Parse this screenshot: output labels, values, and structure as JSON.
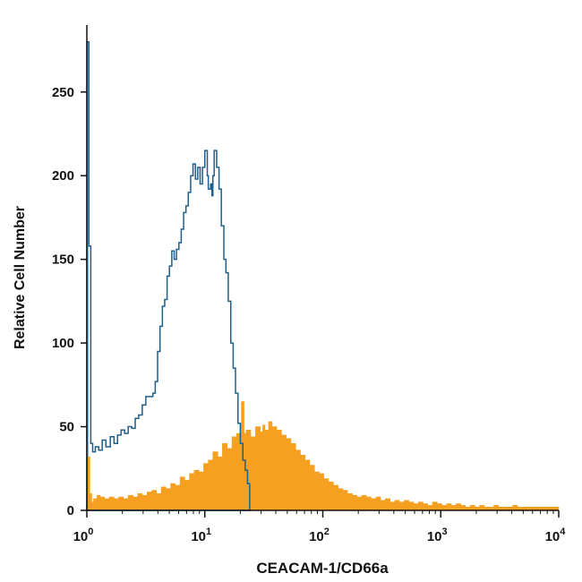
{
  "chart_data": {
    "type": "area",
    "xlabel": "CEACAM-1/CD66a",
    "ylabel": "Relative Cell Number",
    "x_scale": "log",
    "xlim": [
      1,
      10000
    ],
    "ylim": [
      0,
      290
    ],
    "y_ticks": [
      0,
      50,
      100,
      150,
      200,
      250
    ],
    "x_ticks": [
      {
        "base": "10",
        "exp": "0",
        "value": 1
      },
      {
        "base": "10",
        "exp": "1",
        "value": 10
      },
      {
        "base": "10",
        "exp": "2",
        "value": 100
      },
      {
        "base": "10",
        "exp": "3",
        "value": 1000
      },
      {
        "base": "10",
        "exp": "4",
        "value": 10000
      }
    ],
    "grid": false,
    "legend": "none",
    "colors": {
      "outline_series": "#1f5f8b",
      "outline_fill": "#8fb6d6",
      "filled_series": "#f5a020",
      "axis": "#111111"
    },
    "series": [
      {
        "style": "outline",
        "points": [
          [
            1.0,
            280
          ],
          [
            1.04,
            158
          ],
          [
            1.08,
            40
          ],
          [
            1.12,
            35
          ],
          [
            1.18,
            38
          ],
          [
            1.26,
            36
          ],
          [
            1.35,
            42
          ],
          [
            1.45,
            38
          ],
          [
            1.58,
            44
          ],
          [
            1.7,
            40
          ],
          [
            1.82,
            45
          ],
          [
            1.95,
            48
          ],
          [
            2.09,
            46
          ],
          [
            2.24,
            50
          ],
          [
            2.4,
            49
          ],
          [
            2.57,
            55
          ],
          [
            2.75,
            57
          ],
          [
            2.95,
            63
          ],
          [
            3.16,
            68
          ],
          [
            3.39,
            68
          ],
          [
            3.63,
            70
          ],
          [
            3.8,
            77
          ],
          [
            3.98,
            95
          ],
          [
            4.17,
            110
          ],
          [
            4.37,
            122
          ],
          [
            4.57,
            126
          ],
          [
            4.79,
            140
          ],
          [
            5.01,
            146
          ],
          [
            5.25,
            155
          ],
          [
            5.5,
            150
          ],
          [
            5.75,
            156
          ],
          [
            6.03,
            160
          ],
          [
            6.31,
            168
          ],
          [
            6.61,
            178
          ],
          [
            6.92,
            182
          ],
          [
            7.24,
            190
          ],
          [
            7.59,
            200
          ],
          [
            7.94,
            207
          ],
          [
            8.32,
            198
          ],
          [
            8.71,
            205
          ],
          [
            9.12,
            195
          ],
          [
            9.33,
            195
          ],
          [
            9.55,
            205
          ],
          [
            10.0,
            215
          ],
          [
            10.5,
            200
          ],
          [
            10.7,
            192
          ],
          [
            11.2,
            195
          ],
          [
            11.5,
            188
          ],
          [
            11.7,
            200
          ],
          [
            12.0,
            215
          ],
          [
            12.6,
            205
          ],
          [
            13.2,
            192
          ],
          [
            13.8,
            170
          ],
          [
            14.5,
            150
          ],
          [
            15.1,
            142
          ],
          [
            15.8,
            125
          ],
          [
            16.6,
            100
          ],
          [
            17.4,
            85
          ],
          [
            18.2,
            70
          ],
          [
            19.1,
            52
          ],
          [
            20.0,
            40
          ],
          [
            21.0,
            30
          ],
          [
            22.0,
            24
          ],
          [
            23.0,
            16
          ],
          [
            24.0,
            0
          ]
        ]
      },
      {
        "style": "filled",
        "points": [
          [
            1.0,
            32
          ],
          [
            1.06,
            10
          ],
          [
            1.1,
            5
          ],
          [
            1.14,
            7
          ],
          [
            1.22,
            9
          ],
          [
            1.3,
            8
          ],
          [
            1.41,
            7
          ],
          [
            1.55,
            8
          ],
          [
            1.7,
            7
          ],
          [
            1.86,
            8
          ],
          [
            2.04,
            7
          ],
          [
            2.24,
            9
          ],
          [
            2.46,
            8
          ],
          [
            2.7,
            10
          ],
          [
            2.95,
            9
          ],
          [
            3.24,
            11
          ],
          [
            3.55,
            12
          ],
          [
            3.89,
            10
          ],
          [
            4.27,
            14
          ],
          [
            4.68,
            13
          ],
          [
            5.13,
            16
          ],
          [
            5.62,
            15
          ],
          [
            6.17,
            20
          ],
          [
            6.76,
            18
          ],
          [
            7.41,
            22
          ],
          [
            8.13,
            24
          ],
          [
            8.91,
            23
          ],
          [
            9.77,
            28
          ],
          [
            10.7,
            30
          ],
          [
            11.7,
            35
          ],
          [
            12.9,
            32
          ],
          [
            14.1,
            40
          ],
          [
            15.5,
            37
          ],
          [
            17.0,
            44
          ],
          [
            18.6,
            46
          ],
          [
            20.0,
            52
          ],
          [
            20.4,
            65
          ],
          [
            21.5,
            46
          ],
          [
            22.4,
            48
          ],
          [
            24.5,
            44
          ],
          [
            26.9,
            50
          ],
          [
            29.5,
            47
          ],
          [
            31.0,
            51
          ],
          [
            32.4,
            48
          ],
          [
            34.7,
            53
          ],
          [
            37.2,
            50
          ],
          [
            40.7,
            48
          ],
          [
            44.7,
            45
          ],
          [
            49.0,
            43
          ],
          [
            53.7,
            40
          ],
          [
            58.9,
            36
          ],
          [
            64.6,
            33
          ],
          [
            70.8,
            30
          ],
          [
            77.6,
            27
          ],
          [
            85.1,
            23
          ],
          [
            93.3,
            22
          ],
          [
            102,
            19
          ],
          [
            112,
            17
          ],
          [
            123,
            15
          ],
          [
            135,
            13
          ],
          [
            148,
            12
          ],
          [
            162,
            10
          ],
          [
            178,
            9
          ],
          [
            195,
            8
          ],
          [
            214,
            9
          ],
          [
            234,
            8
          ],
          [
            257,
            7
          ],
          [
            282,
            8
          ],
          [
            309,
            6
          ],
          [
            339,
            7
          ],
          [
            372,
            5
          ],
          [
            407,
            6
          ],
          [
            447,
            5
          ],
          [
            490,
            6
          ],
          [
            537,
            5
          ],
          [
            589,
            4
          ],
          [
            646,
            5
          ],
          [
            708,
            4
          ],
          [
            776,
            3
          ],
          [
            851,
            5
          ],
          [
            933,
            4
          ],
          [
            1023,
            3
          ],
          [
            1122,
            4
          ],
          [
            1230,
            3
          ],
          [
            1349,
            4
          ],
          [
            1479,
            3
          ],
          [
            1622,
            2
          ],
          [
            1778,
            3
          ],
          [
            1950,
            2
          ],
          [
            2138,
            3
          ],
          [
            2344,
            2
          ],
          [
            2570,
            2
          ],
          [
            2818,
            3
          ],
          [
            3090,
            2
          ],
          [
            3388,
            2
          ],
          [
            3715,
            2
          ],
          [
            4074,
            3
          ],
          [
            4467,
            2
          ],
          [
            4898,
            2
          ],
          [
            5370,
            2
          ],
          [
            5888,
            2
          ],
          [
            6457,
            2
          ],
          [
            7079,
            2
          ],
          [
            7762,
            2
          ],
          [
            8511,
            2
          ],
          [
            9333,
            2
          ],
          [
            10000,
            0
          ]
        ]
      }
    ]
  }
}
